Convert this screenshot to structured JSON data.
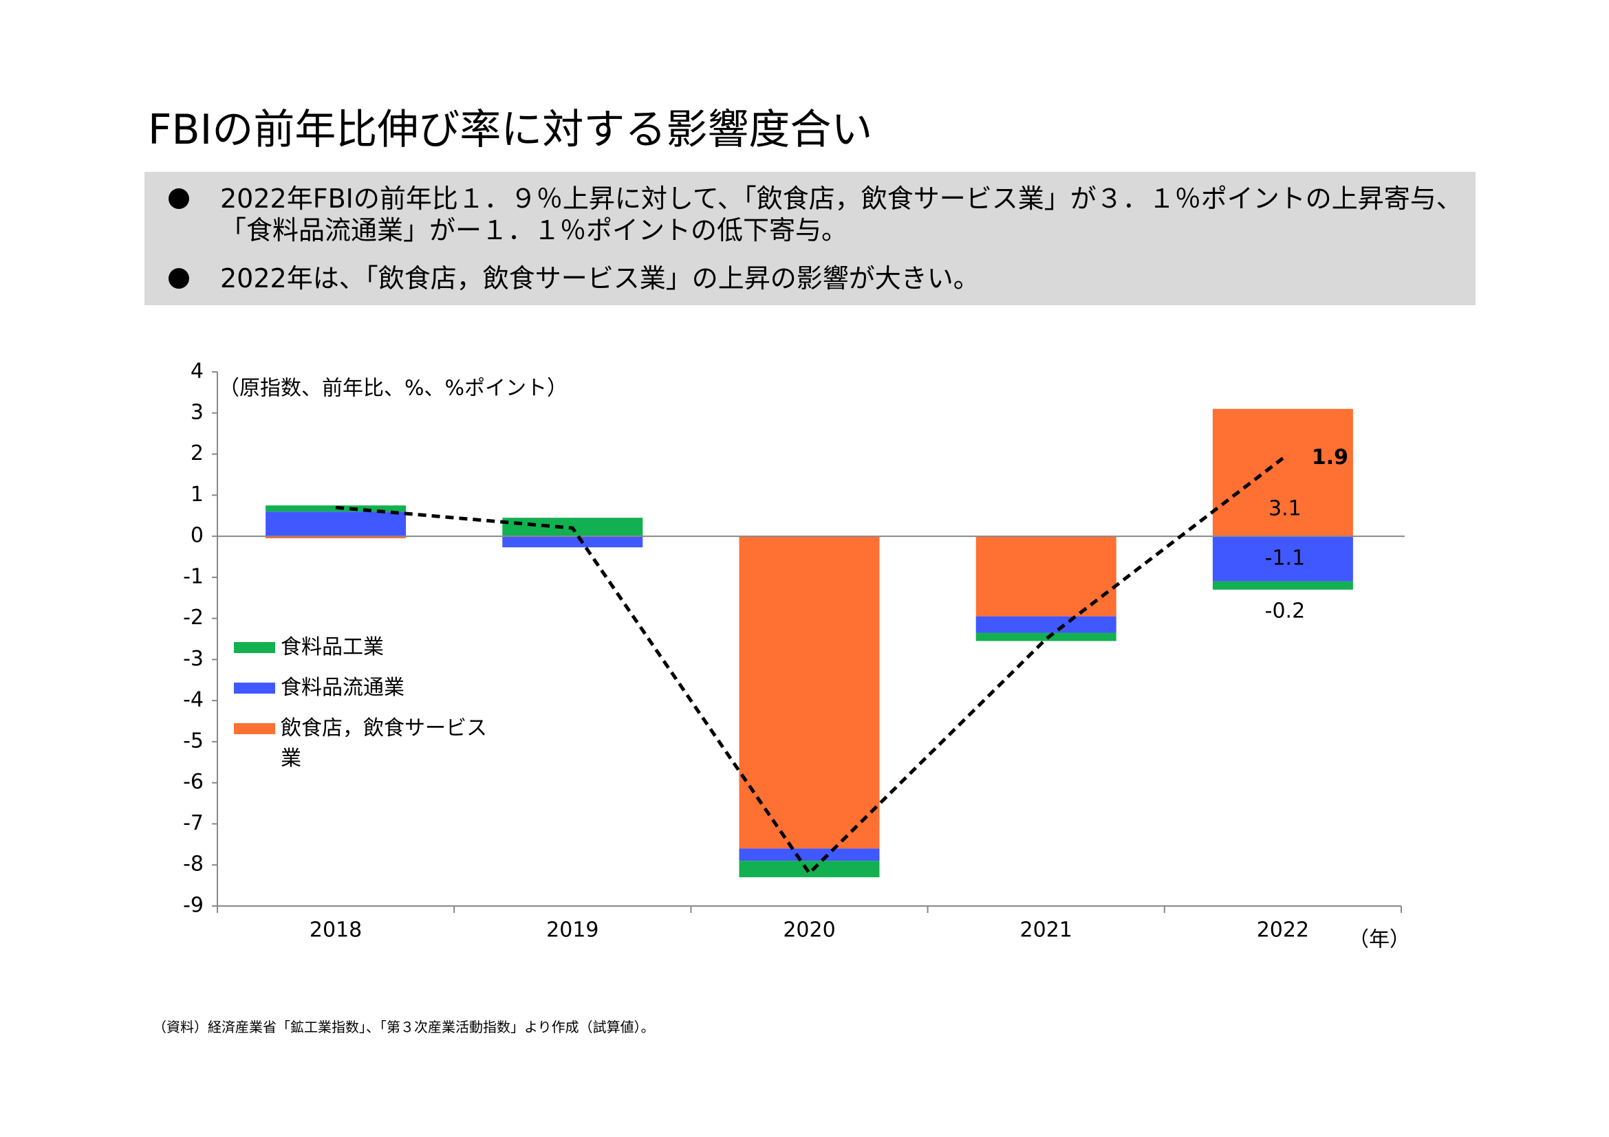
{
  "header": {
    "title": "FBIの前年比伸び率に対する影響度合い",
    "bullets": [
      "2022年FBIの前年比１．９％上昇に対して、「飲食店，飲食サービス業」が３．１％ポイントの上昇寄与、「食料品流通業」がー１．１％ポイントの低下寄与。",
      "2022年は、「飲食店，飲食サービス業」の上昇の影響が大きい。"
    ]
  },
  "chart_data": {
    "type": "bar",
    "stacked": true,
    "y_unit_label": "（原指数、前年比、%、%ポイント）",
    "x_unit_label": "（年）",
    "categories": [
      "2018",
      "2019",
      "2020",
      "2021",
      "2022"
    ],
    "series": [
      {
        "name": "食料品工業",
        "color": "#12b050",
        "values": [
          0.15,
          0.45,
          -0.4,
          -0.2,
          -0.2
        ]
      },
      {
        "name": "食料品流通業",
        "color": "#4058ff",
        "values": [
          0.6,
          -0.27,
          -0.3,
          -0.4,
          -1.1
        ]
      },
      {
        "name": "飲食店，飲食サービス業",
        "color": "#ff7033",
        "values": [
          -0.05,
          0,
          -7.6,
          -1.95,
          3.1
        ]
      },
      {
        "type": "line",
        "color": "#000000",
        "values": [
          0.7,
          0.2,
          -8.2,
          -2.5,
          1.9
        ]
      }
    ],
    "ylim": [
      -9,
      4
    ],
    "yticks": [
      -9,
      -8,
      -7,
      -6,
      -5,
      -4,
      -3,
      -2,
      -1,
      0,
      1,
      2,
      3,
      4
    ]
  },
  "footnote": "（資料）経済産業省「鉱工業指数」、「第３次産業活動指数」より作成（試算値）。"
}
